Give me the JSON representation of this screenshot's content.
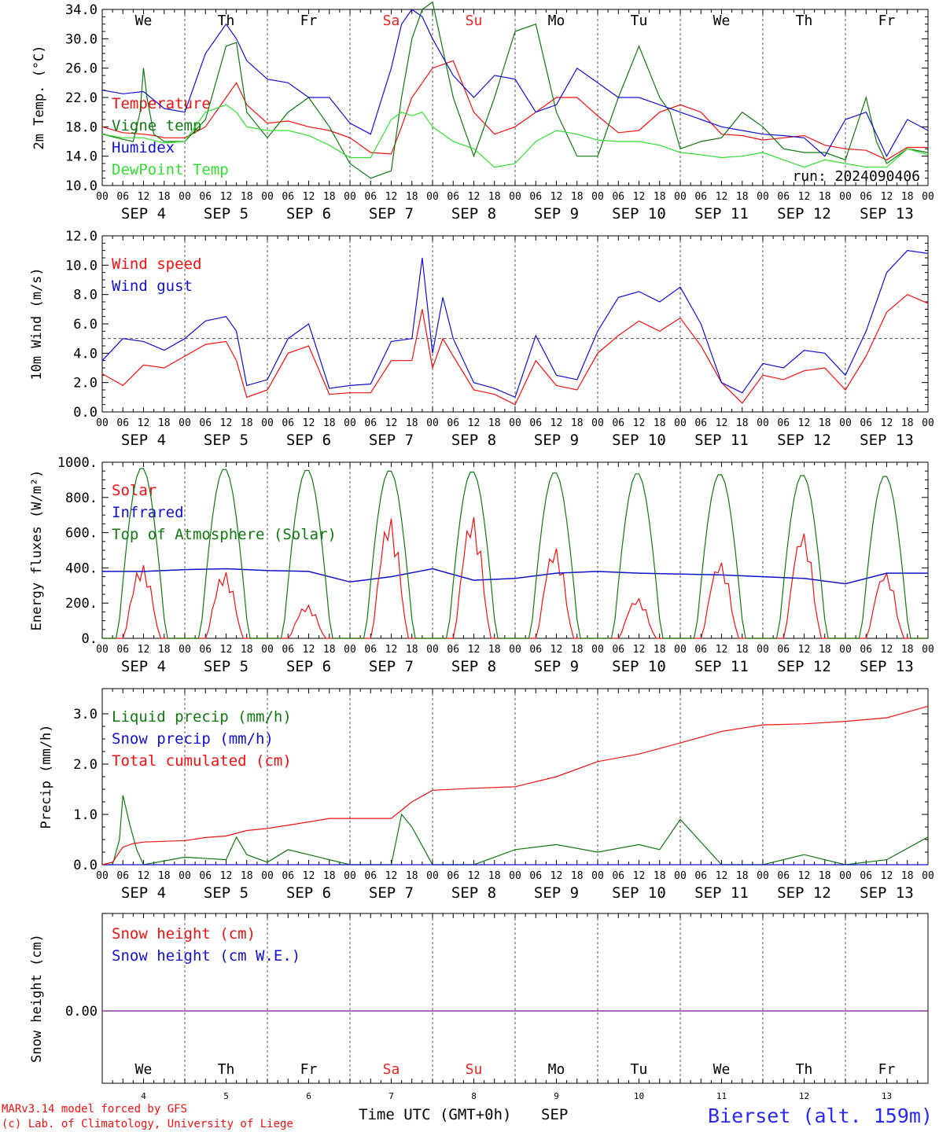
{
  "run_label": "run: 2024090406",
  "footer": {
    "model": "MARv3.14 model forced by GFS",
    "copyright": "(c) Lab. of Climatology, University of Liege",
    "time_axis": "Time UTC (GMT+0h)",
    "month": "SEP",
    "station": "Bierset (alt. 159m)"
  },
  "days": {
    "weekdays": [
      "We",
      "Th",
      "Fr",
      "Sa",
      "Su",
      "Mo",
      "Tu",
      "We",
      "Th",
      "Fr"
    ],
    "weekend_color": "#ee2222",
    "dates": [
      "SEP  4",
      "SEP  5",
      "SEP  6",
      "SEP  7",
      "SEP  8",
      "SEP  9",
      "SEP 10",
      "SEP 11",
      "SEP 12",
      "SEP 13"
    ],
    "day_numbers": [
      "4",
      "5",
      "6",
      "7",
      "8",
      "9",
      "10",
      "11",
      "12",
      "13"
    ],
    "hour_ticks": [
      "00",
      "06",
      "12",
      "18"
    ],
    "final_hour_tick": "00"
  },
  "colors": {
    "red": "#ee1111",
    "green": "#117711",
    "blue": "#1111cc",
    "lightgreen": "#33dd33",
    "purple": "#7733aa"
  },
  "chart_data": [
    {
      "type": "line",
      "ylabel": "2m Temp. (°C)",
      "ylim": [
        10,
        34
      ],
      "yticks": [
        "10.0",
        "14.0",
        "18.0",
        "22.0",
        "26.0",
        "30.0",
        "34.0"
      ],
      "x_unit": "hours since SEP 4 00 UTC",
      "series": [
        {
          "name": "Temperature",
          "color": "#ee1111",
          "x": [
            0,
            6,
            12,
            15,
            18,
            24,
            30,
            36,
            39,
            42,
            48,
            54,
            60,
            66,
            72,
            78,
            84,
            87,
            90,
            96,
            102,
            108,
            114,
            120,
            126,
            132,
            138,
            144,
            150,
            156,
            162,
            168,
            174,
            180,
            186,
            192,
            198,
            204,
            210,
            216,
            222,
            228,
            234,
            240
          ],
          "y": [
            18,
            17.2,
            17,
            16.8,
            16.5,
            16.5,
            18,
            22,
            24,
            21,
            18.5,
            18.8,
            18,
            17.5,
            16.5,
            14.5,
            14.3,
            18,
            22,
            26,
            27,
            20,
            17,
            18,
            20,
            22,
            22,
            19.5,
            17.2,
            17.5,
            20,
            21,
            20,
            17,
            16.8,
            16.2,
            16.5,
            16.8,
            15.5,
            15,
            14.8,
            13.5,
            15.2,
            15.2
          ]
        },
        {
          "name": "Vigne temp",
          "color": "#117711",
          "x": [
            0,
            6,
            9,
            11,
            12,
            13,
            15,
            18,
            24,
            30,
            36,
            39,
            42,
            48,
            54,
            60,
            66,
            72,
            78,
            84,
            87,
            90,
            93,
            96,
            102,
            108,
            114,
            120,
            126,
            129,
            132,
            138,
            144,
            150,
            156,
            162,
            165,
            168,
            174,
            180,
            186,
            192,
            198,
            204,
            210,
            216,
            222,
            225,
            228,
            234,
            240
          ],
          "y": [
            17,
            16.3,
            16,
            20,
            26,
            22,
            17,
            16,
            16,
            19,
            29,
            29.5,
            20,
            16.5,
            20,
            22,
            18,
            13,
            11,
            12,
            22,
            30,
            34,
            35,
            22,
            14,
            22,
            31,
            32,
            26,
            20,
            14,
            14,
            22,
            29,
            22,
            20,
            15,
            16,
            16.5,
            20,
            18,
            15,
            14.5,
            14.5,
            13.5,
            22,
            16,
            13,
            15,
            14.5
          ]
        },
        {
          "name": "Humidex",
          "color": "#1111cc",
          "x": [
            0,
            6,
            12,
            18,
            24,
            30,
            36,
            39,
            42,
            48,
            54,
            60,
            66,
            72,
            78,
            84,
            87,
            90,
            93,
            96,
            102,
            108,
            114,
            120,
            126,
            132,
            138,
            144,
            150,
            156,
            162,
            168,
            174,
            180,
            186,
            192,
            198,
            204,
            210,
            216,
            222,
            228,
            234,
            240
          ],
          "y": [
            23,
            22.5,
            22.8,
            20.5,
            20,
            28,
            32,
            30,
            27,
            24.5,
            24,
            22,
            22,
            18.5,
            17,
            26,
            32,
            34,
            33,
            30,
            25,
            22,
            25,
            24.5,
            20,
            21,
            26,
            24,
            22,
            22,
            21,
            20,
            19,
            18,
            17.5,
            17,
            16.8,
            16.5,
            14,
            19,
            20,
            14,
            19,
            17.5
          ]
        },
        {
          "name": "DewPoint Temp",
          "color": "#33dd33",
          "x": [
            0,
            6,
            12,
            18,
            24,
            30,
            36,
            39,
            42,
            48,
            54,
            60,
            66,
            72,
            78,
            84,
            87,
            90,
            93,
            96,
            102,
            108,
            114,
            120,
            126,
            132,
            138,
            144,
            150,
            156,
            162,
            168,
            174,
            180,
            186,
            192,
            198,
            204,
            210,
            216,
            222,
            228,
            234,
            240
          ],
          "y": [
            17,
            16.5,
            16.5,
            15.8,
            16,
            20,
            21,
            20,
            18,
            17.5,
            17.5,
            16.8,
            15.5,
            13.8,
            13.8,
            19,
            20,
            19.5,
            20,
            18,
            16,
            15,
            12.5,
            13,
            16,
            17.5,
            17,
            16.2,
            16,
            16,
            15.5,
            14.5,
            14.2,
            13.8,
            14,
            14.5,
            13.5,
            12.5,
            13.5,
            13,
            12.5,
            12.5,
            15,
            14.2
          ]
        }
      ]
    },
    {
      "type": "line",
      "ylabel": "10m Wind (m/s)",
      "ylim": [
        0,
        12
      ],
      "yticks": [
        "0.0",
        "2.0",
        "4.0",
        "6.0",
        "8.0",
        "10.0",
        "12.0"
      ],
      "reference_line": 5,
      "x_unit": "hours since SEP 4 00 UTC",
      "series": [
        {
          "name": "Wind speed",
          "color": "#ee1111",
          "x": [
            0,
            6,
            12,
            18,
            24,
            30,
            36,
            39,
            42,
            48,
            54,
            60,
            66,
            72,
            78,
            84,
            90,
            93,
            96,
            99,
            102,
            108,
            114,
            120,
            126,
            132,
            138,
            144,
            150,
            156,
            162,
            168,
            174,
            180,
            186,
            192,
            198,
            204,
            210,
            216,
            222,
            228,
            234,
            240
          ],
          "y": [
            2.6,
            1.8,
            3.2,
            3,
            3.8,
            4.6,
            4.8,
            3.5,
            1,
            1.5,
            4,
            4.5,
            1.2,
            1.3,
            1.3,
            3.5,
            3.5,
            7,
            3,
            5,
            3.8,
            1.5,
            1.2,
            0.5,
            3.5,
            1.8,
            1.5,
            4,
            5.2,
            6.2,
            5.5,
            6.4,
            4.5,
            2,
            0.6,
            2.5,
            2.2,
            2.8,
            3,
            1.5,
            3.8,
            6.8,
            8,
            7.4
          ]
        },
        {
          "name": "Wind gust",
          "color": "#1111cc",
          "x": [
            0,
            6,
            12,
            18,
            24,
            30,
            36,
            39,
            42,
            48,
            54,
            60,
            66,
            72,
            78,
            84,
            90,
            93,
            96,
            99,
            102,
            108,
            114,
            120,
            126,
            132,
            138,
            144,
            150,
            156,
            162,
            168,
            174,
            180,
            186,
            192,
            198,
            204,
            210,
            216,
            222,
            228,
            234,
            240
          ],
          "y": [
            3.5,
            5,
            4.8,
            4.2,
            5,
            6.2,
            6.5,
            5.5,
            1.8,
            2.2,
            5,
            6,
            1.6,
            1.8,
            1.9,
            4.8,
            5,
            10.5,
            4,
            7.8,
            5,
            2,
            1.6,
            1,
            5.2,
            2.5,
            2.2,
            5.5,
            7.8,
            8.2,
            7.5,
            8.5,
            6,
            2,
            1.3,
            3.3,
            3,
            4.2,
            4,
            2.5,
            5.5,
            9.5,
            11,
            10.8
          ]
        }
      ]
    },
    {
      "type": "line",
      "ylabel": "Energy fluxes (W/m²)",
      "ylim": [
        0,
        1000
      ],
      "yticks": [
        "0.",
        "200.",
        "400.",
        "600.",
        "800.",
        "1000."
      ],
      "x_unit": "hours since SEP 4 00 UTC",
      "series": [
        {
          "name": "Solar",
          "color": "#ee1111",
          "peaks": [
            420,
            380,
            190,
            690,
            700,
            520,
            230,
            440,
            610,
            380
          ]
        },
        {
          "name": "Infrared",
          "color": "#1111cc",
          "x": [
            0,
            12,
            24,
            36,
            48,
            60,
            72,
            84,
            96,
            108,
            120,
            132,
            144,
            156,
            168,
            180,
            192,
            204,
            216,
            228,
            240
          ],
          "y": [
            380,
            380,
            390,
            395,
            385,
            380,
            320,
            350,
            395,
            330,
            340,
            370,
            380,
            370,
            365,
            360,
            350,
            340,
            310,
            370,
            370
          ]
        },
        {
          "name": "Top of Atmosphere (Solar)",
          "color": "#117711",
          "peaks": [
            970,
            965,
            960,
            955,
            950,
            945,
            940,
            935,
            930,
            925
          ]
        }
      ]
    },
    {
      "type": "line",
      "ylabel": "Precip (mm/h)",
      "ylim": [
        0,
        3.5
      ],
      "yticks": [
        "0.0",
        "1.0",
        "2.0",
        "3.0"
      ],
      "x_unit": "hours since SEP 4 00 UTC",
      "series": [
        {
          "name": "Liquid precip (mm/h)",
          "color": "#117711",
          "x": [
            0,
            3,
            5,
            6,
            8,
            10,
            12,
            24,
            36,
            39,
            42,
            48,
            54,
            60,
            72,
            84,
            87,
            90,
            96,
            108,
            120,
            132,
            144,
            156,
            162,
            168,
            180,
            192,
            204,
            216,
            228,
            240
          ],
          "y": [
            0,
            0,
            0.5,
            1.38,
            0.8,
            0.3,
            0,
            0.15,
            0.1,
            0.55,
            0.2,
            0.05,
            0.3,
            0.2,
            0,
            0,
            1,
            0.75,
            0,
            0,
            0.3,
            0.4,
            0.25,
            0.4,
            0.3,
            0.9,
            0,
            0,
            0.2,
            0,
            0.1,
            0.55
          ]
        },
        {
          "name": "Snow precip (mm/h)",
          "color": "#1111cc",
          "x": [
            0,
            240
          ],
          "y": [
            0,
            0
          ]
        },
        {
          "name": "Total cumulated (cm)",
          "color": "#ee1111",
          "x": [
            0,
            3,
            6,
            9,
            12,
            24,
            30,
            36,
            42,
            48,
            60,
            66,
            84,
            90,
            96,
            108,
            120,
            132,
            144,
            156,
            168,
            180,
            192,
            204,
            216,
            228,
            240
          ],
          "y": [
            0,
            0.05,
            0.35,
            0.42,
            0.45,
            0.48,
            0.54,
            0.57,
            0.68,
            0.72,
            0.85,
            0.92,
            0.92,
            1.25,
            1.48,
            1.52,
            1.55,
            1.75,
            2.05,
            2.2,
            2.42,
            2.65,
            2.78,
            2.8,
            2.85,
            2.92,
            3.15
          ]
        }
      ]
    },
    {
      "type": "line",
      "ylabel": "Snow height (cm)",
      "ytick": "0.00",
      "x_unit": "hours since SEP 4 00 UTC",
      "series": [
        {
          "name": "Snow height (cm)",
          "color": "#ee1111",
          "x": [
            0,
            240
          ],
          "y": [
            0,
            0
          ]
        },
        {
          "name": "Snow height (cm W.E.)",
          "color": "#1111cc",
          "x": [
            0,
            240
          ],
          "y": [
            0,
            0
          ]
        }
      ]
    }
  ]
}
